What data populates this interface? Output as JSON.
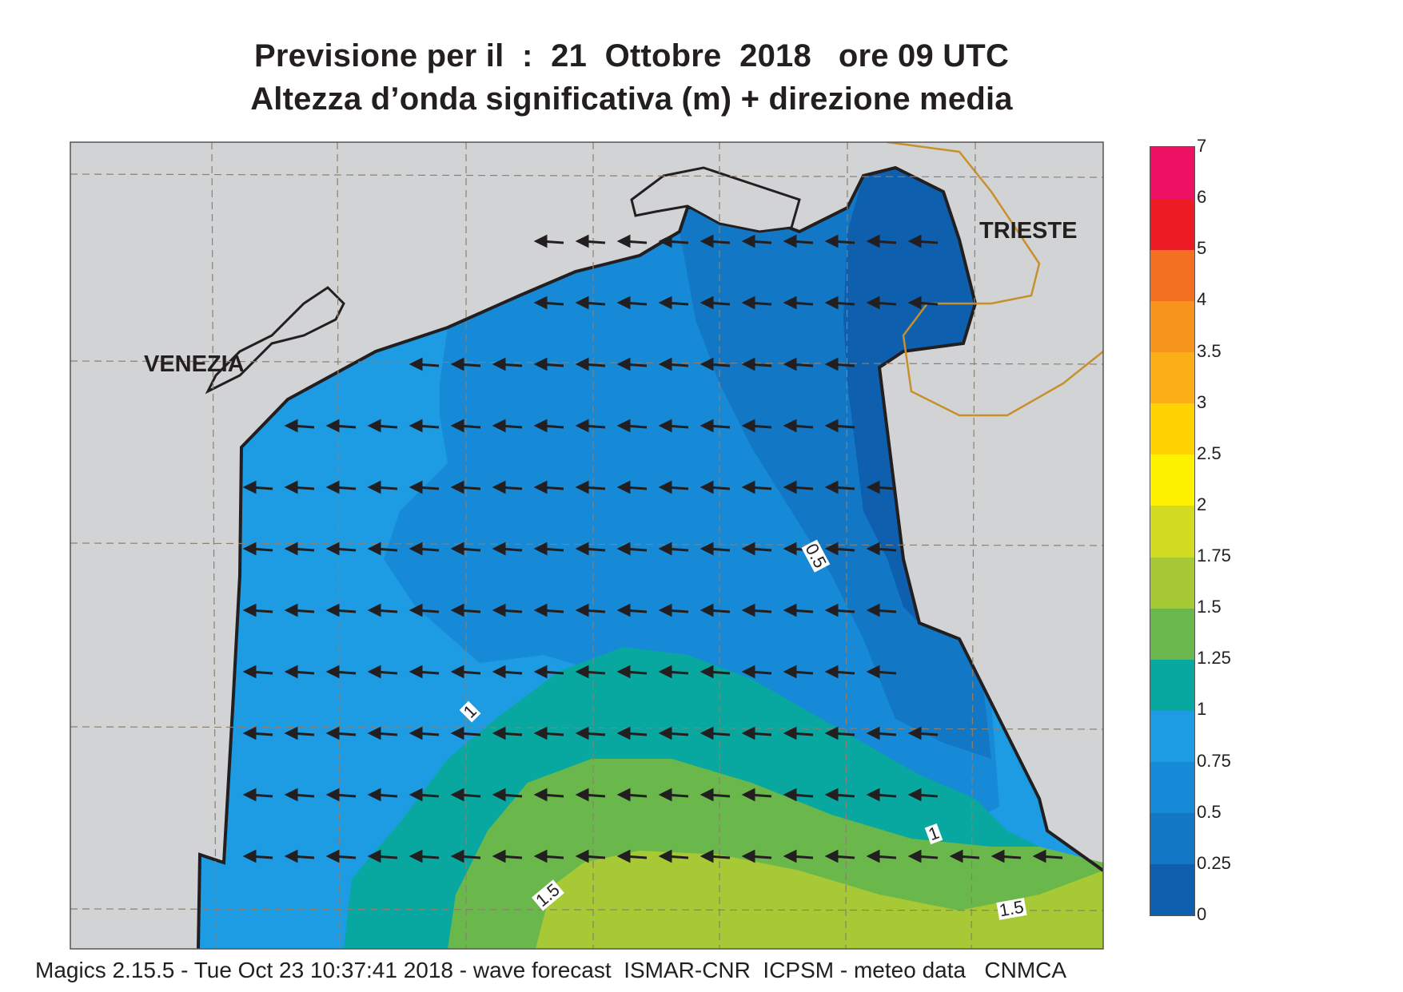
{
  "title": {
    "line1": "Previsione per il  :  21  Ottobre  2018   ore 09 UTC",
    "line2": "Altezza d’onda significativa (m) + direzione media"
  },
  "footer": "Magics 2.15.5 - Tue Oct 23 10:37:41 2018 - wave forecast  ISMAR-CNR  ICPSM - meteo data   CNMCA",
  "cities": {
    "venezia": "VENEZIA",
    "trieste": "TRIESTE"
  },
  "contour_labels": {
    "c05": "0.5",
    "c1a": "1",
    "c1b": "1",
    "c15a": "1.5",
    "c15b": "1.5"
  },
  "legend": {
    "bins": [
      {
        "from": "0",
        "to": "0.25",
        "color": "#0e5fae"
      },
      {
        "from": "0.25",
        "to": "0.5",
        "color": "#1278c6"
      },
      {
        "from": "0.5",
        "to": "0.75",
        "color": "#1689d7"
      },
      {
        "from": "0.75",
        "to": "1",
        "color": "#1d9be3"
      },
      {
        "from": "1",
        "to": "1.25",
        "color": "#08a8a0"
      },
      {
        "from": "1.25",
        "to": "1.5",
        "color": "#6ab84b"
      },
      {
        "from": "1.5",
        "to": "1.75",
        "color": "#a6c935"
      },
      {
        "from": "1.75",
        "to": "2",
        "color": "#d3dc21"
      },
      {
        "from": "2",
        "to": "2.5",
        "color": "#fff200"
      },
      {
        "from": "2.5",
        "to": "3",
        "color": "#ffd200"
      },
      {
        "from": "3",
        "to": "3.5",
        "color": "#fbae17"
      },
      {
        "from": "3.5",
        "to": "4",
        "color": "#f7941d"
      },
      {
        "from": "4",
        "to": "5",
        "color": "#f37021"
      },
      {
        "from": "5",
        "to": "6",
        "color": "#ed1c24"
      },
      {
        "from": "6",
        "to": "7",
        "color": "#ed1163"
      }
    ],
    "tick_labels": [
      "0",
      "0.25",
      "0.5",
      "0.75",
      "1",
      "1.25",
      "1.5",
      "1.75",
      "2",
      "2.5",
      "3",
      "3.5",
      "4",
      "5",
      "6",
      "7"
    ]
  },
  "colors": {
    "land": "#d1d3d4",
    "coast": "#231f20",
    "border": "#c8902c",
    "grid": "#8c8070"
  },
  "wave_direction": "westward"
}
